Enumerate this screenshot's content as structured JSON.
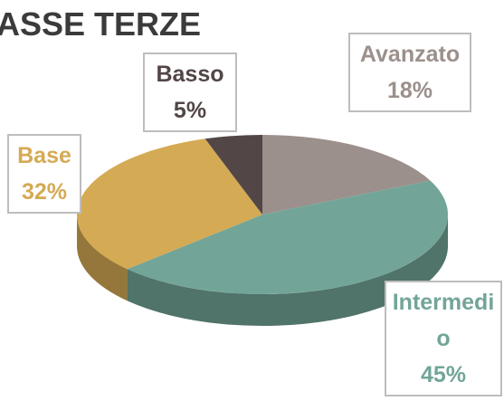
{
  "chart_data": {
    "type": "pie",
    "title": "ASSE TERZE",
    "categories": [
      "Avanzato",
      "Intermedio",
      "Base",
      "Basso"
    ],
    "values": [
      18,
      45,
      32,
      5
    ],
    "value_labels": [
      "18%",
      "45%",
      "32%",
      "5%"
    ],
    "colors": [
      "#9b908b",
      "#72a598",
      "#d5aa54",
      "#524646"
    ]
  }
}
